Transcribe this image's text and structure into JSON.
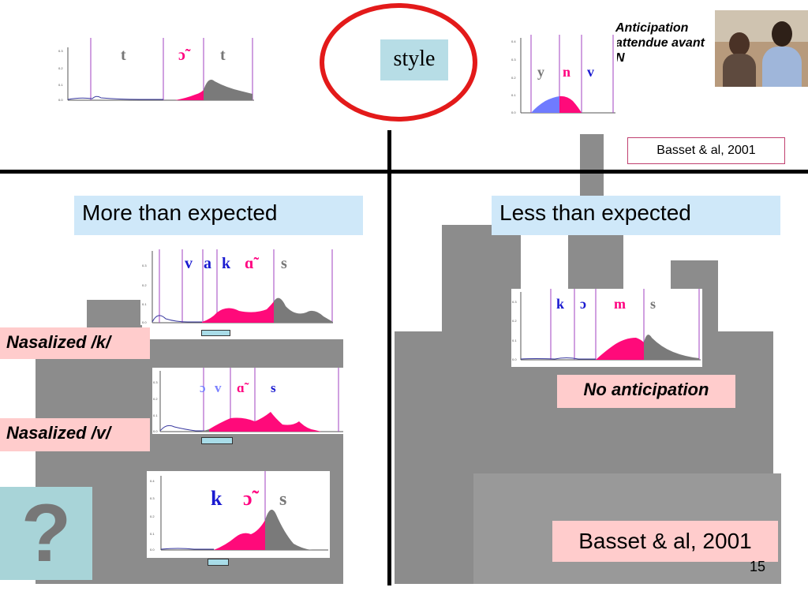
{
  "slide": {
    "style_label": "style",
    "anticipation_note": "Anticipation attendue avant N",
    "citation_top": "Basset & al, 2001",
    "citation_bottom": "Basset & al, 2001",
    "page_number": "15",
    "question_mark": "?"
  },
  "sections": {
    "more": {
      "title": "More than expected"
    },
    "less": {
      "title": "Less than expected"
    }
  },
  "labels": {
    "nasalized_k": "Nasalized /k/",
    "nasalized_v": "Nasalized /v/",
    "no_anticipation": "No anticipation"
  },
  "plots": {
    "top_left": {
      "phonemes": [
        "t",
        "ɔ̃",
        "t"
      ],
      "yticks": [
        "0.3",
        "0.2",
        "0.1",
        "0.0"
      ]
    },
    "top_right": {
      "phonemes": [
        "y",
        "n",
        "v"
      ],
      "yticks": [
        "0.4",
        "0.3",
        "0.2",
        "0.1",
        "0.0"
      ]
    },
    "vakas": {
      "phonemes": [
        "v",
        "a",
        "k",
        "ɑ̃",
        "s"
      ],
      "yticks": [
        "0.3",
        "0.2",
        "0.1",
        "0.0"
      ]
    },
    "ovas": {
      "phonemes": [
        "ɔ",
        "v",
        "ɑ̃",
        "s"
      ],
      "yticks": [
        "0.3",
        "0.2",
        "0.1",
        "0.0"
      ]
    },
    "kos": {
      "phonemes": [
        "k",
        "ɔ̃",
        "s"
      ],
      "yticks": [
        "0.4",
        "0.3",
        "0.2",
        "0.1",
        "0.0"
      ]
    },
    "koms": {
      "phonemes": [
        "k",
        "ɔ",
        "m",
        "s"
      ],
      "yticks": [
        "0.3",
        "0.2",
        "0.1",
        "0.0"
      ]
    }
  },
  "colors": {
    "nasal_fill": "#ff0a7a",
    "oral_fill": "#7a7a7a",
    "blue_fill": "#6f7bff",
    "divider": "#a040c0",
    "phoneme_blue": "#1a1ad0",
    "phoneme_pink": "#ff0080",
    "phoneme_gray": "#777777",
    "ellipse_red": "#e31a1a"
  }
}
